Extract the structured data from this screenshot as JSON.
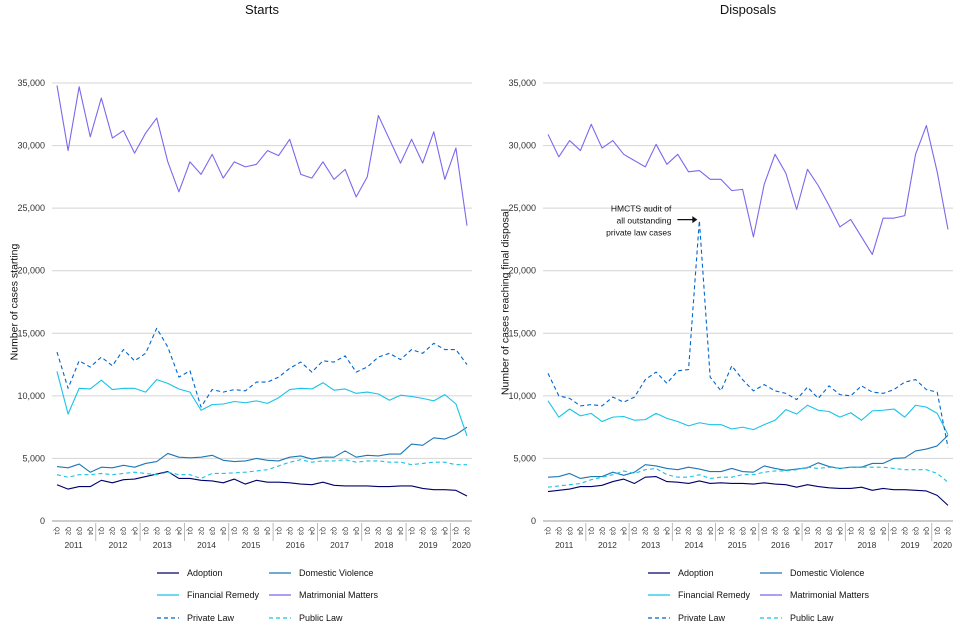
{
  "chart_data": [
    {
      "type": "line",
      "title": "Starts",
      "ylabel": "Number of cases starting",
      "xlabel": "",
      "ylim": [
        0,
        35000
      ],
      "yticks": [
        "0",
        "5,000",
        "10,000",
        "15,000",
        "20,000",
        "25,000",
        "30,000",
        "35,000"
      ],
      "years": [
        "2011",
        "2012",
        "2013",
        "2014",
        "2015",
        "2016",
        "2017",
        "2018",
        "2019",
        "2020"
      ],
      "quarter_labels": [
        "Q1",
        "Q2",
        "Q3",
        "Q4"
      ],
      "x_count": 38,
      "series": [
        {
          "name": "Adoption",
          "color": "#00006b",
          "dash": false,
          "values": [
            2900,
            2550,
            2750,
            2750,
            3250,
            3050,
            3300,
            3350,
            3550,
            3750,
            3950,
            3400,
            3400,
            3250,
            3200,
            3050,
            3350,
            2950,
            3250,
            3100,
            3100,
            3050,
            2950,
            2900,
            3100,
            2850,
            2800,
            2800,
            2800,
            2750,
            2750,
            2800,
            2800,
            2600,
            2500,
            2500,
            2450,
            2000
          ]
        },
        {
          "name": "Domestic Violence",
          "color": "#1f77b4",
          "dash": false,
          "values": [
            4350,
            4250,
            4550,
            3900,
            4300,
            4250,
            4450,
            4300,
            4600,
            4750,
            5400,
            5100,
            5050,
            5100,
            5250,
            4850,
            4750,
            4800,
            5000,
            4850,
            4800,
            5100,
            5200,
            4950,
            5100,
            5100,
            5600,
            5100,
            5250,
            5200,
            5350,
            5350,
            6150,
            6050,
            6650,
            6550,
            6900,
            7500
          ]
        },
        {
          "name": "Financial Remedy",
          "color": "#17c3e8",
          "dash": false,
          "values": [
            11950,
            8550,
            10600,
            10550,
            11250,
            10500,
            10600,
            10600,
            10300,
            11300,
            11000,
            10550,
            10300,
            8850,
            9300,
            9350,
            9550,
            9450,
            9600,
            9400,
            9850,
            10500,
            10600,
            10550,
            11050,
            10450,
            10550,
            10200,
            10300,
            10150,
            9650,
            10050,
            9950,
            9800,
            9600,
            10100,
            9350,
            6800
          ]
        },
        {
          "name": "Matrimonial Matters",
          "color": "#7b68ee",
          "dash": false,
          "values": [
            34800,
            29600,
            34700,
            30700,
            33800,
            30600,
            31200,
            29400,
            31000,
            32200,
            28700,
            26300,
            28700,
            27700,
            29300,
            27400,
            28700,
            28300,
            28500,
            29600,
            29200,
            30500,
            27700,
            27400,
            28700,
            27300,
            28100,
            25900,
            27500,
            32400,
            30500,
            28600,
            30500,
            28600,
            31100,
            27300,
            29800,
            23600
          ]
        },
        {
          "name": "Private Law",
          "color": "#0066cc",
          "dash": true,
          "values": [
            13500,
            10600,
            12800,
            12300,
            13100,
            12400,
            13700,
            12800,
            13400,
            15400,
            13900,
            11500,
            12000,
            9100,
            10500,
            10300,
            10500,
            10400,
            11100,
            11100,
            11500,
            12200,
            12700,
            11900,
            12800,
            12700,
            13200,
            11900,
            12300,
            13100,
            13400,
            12900,
            13700,
            13400,
            14200,
            13700,
            13700,
            12500
          ]
        },
        {
          "name": "Public Law",
          "color": "#17c3e8",
          "dash": true,
          "values": [
            3700,
            3500,
            3700,
            3700,
            3800,
            3700,
            3800,
            3900,
            3800,
            3700,
            3900,
            3700,
            3700,
            3400,
            3800,
            3800,
            3850,
            3900,
            4000,
            4100,
            4400,
            4700,
            4900,
            4700,
            4800,
            4800,
            4900,
            4700,
            4800,
            4800,
            4700,
            4700,
            4500,
            4600,
            4700,
            4700,
            4500,
            4500
          ]
        }
      ],
      "annotations": []
    },
    {
      "type": "line",
      "title": "Disposals",
      "ylabel": "Number of cases reaching final disposal",
      "xlabel": "",
      "ylim": [
        0,
        35000
      ],
      "yticks": [
        "0",
        "5,000",
        "10,000",
        "15,000",
        "20,000",
        "25,000",
        "30,000",
        "35,000"
      ],
      "years": [
        "2011",
        "2012",
        "2013",
        "2014",
        "2015",
        "2016",
        "2017",
        "2018",
        "2019",
        "2020"
      ],
      "quarter_labels": [
        "Q1",
        "Q2",
        "Q3",
        "Q4"
      ],
      "x_count": 38,
      "series": [
        {
          "name": "Adoption",
          "color": "#00006b",
          "dash": false,
          "values": [
            2350,
            2450,
            2550,
            2750,
            2750,
            2850,
            3150,
            3350,
            3000,
            3500,
            3550,
            3150,
            3100,
            3000,
            3200,
            3000,
            3050,
            3000,
            3000,
            2950,
            3050,
            2950,
            2900,
            2700,
            2900,
            2750,
            2650,
            2600,
            2600,
            2700,
            2450,
            2600,
            2500,
            2500,
            2450,
            2400,
            2050,
            1250
          ]
        },
        {
          "name": "Domestic Violence",
          "color": "#1f77b4",
          "dash": false,
          "values": [
            3500,
            3550,
            3800,
            3400,
            3550,
            3550,
            3900,
            3650,
            3900,
            4500,
            4400,
            4200,
            4100,
            4300,
            4150,
            3950,
            3950,
            4200,
            3950,
            3900,
            4400,
            4200,
            4050,
            4150,
            4250,
            4650,
            4350,
            4200,
            4300,
            4300,
            4600,
            4600,
            5000,
            5050,
            5600,
            5750,
            6000,
            6850
          ]
        },
        {
          "name": "Financial Remedy",
          "color": "#17c3e8",
          "dash": false,
          "values": [
            9600,
            8300,
            8950,
            8400,
            8600,
            7950,
            8300,
            8350,
            8050,
            8100,
            8600,
            8200,
            7950,
            7600,
            7850,
            7700,
            7700,
            7350,
            7500,
            7300,
            7700,
            8050,
            8900,
            8550,
            9250,
            8850,
            8750,
            8300,
            8650,
            8050,
            8800,
            8850,
            8950,
            8300,
            9250,
            9100,
            8600,
            6900
          ]
        },
        {
          "name": "Matrimonial Matters",
          "color": "#7b68ee",
          "dash": false,
          "values": [
            30900,
            29100,
            30400,
            29600,
            31700,
            29800,
            30400,
            29300,
            28800,
            28300,
            30100,
            28500,
            29300,
            27900,
            28000,
            27300,
            27300,
            26400,
            26500,
            22700,
            26900,
            29300,
            27800,
            24900,
            28100,
            26800,
            25200,
            23500,
            24100,
            22700,
            21300,
            24200,
            24200,
            24400,
            29300,
            31600,
            27900,
            23300
          ]
        },
        {
          "name": "Private Law",
          "color": "#0066cc",
          "dash": true,
          "values": [
            11800,
            10000,
            9800,
            9200,
            9300,
            9200,
            9900,
            9500,
            9900,
            11300,
            11900,
            11000,
            12000,
            12100,
            24000,
            11500,
            10400,
            12400,
            11300,
            10400,
            10900,
            10400,
            10200,
            9700,
            10700,
            9800,
            10800,
            10100,
            10000,
            10800,
            10300,
            10200,
            10500,
            11100,
            11300,
            10500,
            10300,
            5900
          ]
        },
        {
          "name": "Public Law",
          "color": "#17c3e8",
          "dash": true,
          "values": [
            2700,
            2800,
            2900,
            3000,
            3300,
            3500,
            3700,
            4000,
            3800,
            4100,
            4200,
            3700,
            3500,
            3500,
            3700,
            3400,
            3500,
            3500,
            3700,
            3700,
            3900,
            4000,
            4000,
            4100,
            4300,
            4200,
            4300,
            4200,
            4300,
            4300,
            4300,
            4300,
            4200,
            4100,
            4100,
            4100,
            3800,
            3100
          ]
        }
      ],
      "annotations": [
        {
          "text_lines": [
            "HMCTS audit of",
            "all outstanding",
            "private law cases"
          ],
          "point_index": 14,
          "value": 24000
        }
      ]
    }
  ],
  "legend": {
    "items": [
      {
        "name": "Adoption",
        "color": "#00006b",
        "dash": false
      },
      {
        "name": "Domestic Violence",
        "color": "#1f77b4",
        "dash": false
      },
      {
        "name": "Financial Remedy",
        "color": "#17c3e8",
        "dash": false
      },
      {
        "name": "Matrimonial Matters",
        "color": "#7b68ee",
        "dash": false
      },
      {
        "name": "Private Law",
        "color": "#0066cc",
        "dash": true
      },
      {
        "name": "Public Law",
        "color": "#17c3e8",
        "dash": true
      }
    ]
  }
}
